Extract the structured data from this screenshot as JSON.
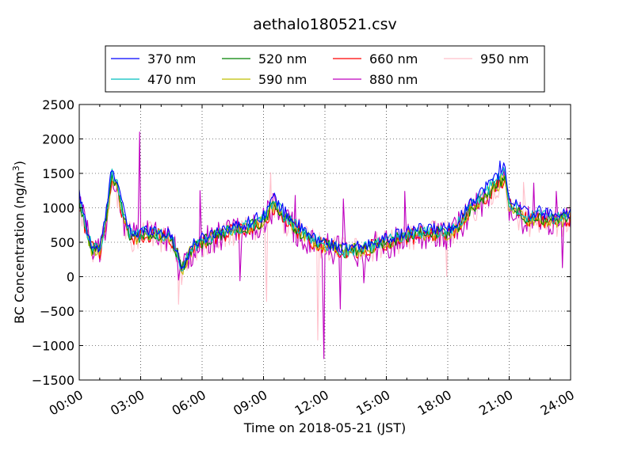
{
  "chart_data": {
    "type": "line",
    "title": "aethalo180521.csv",
    "xlabel": "Time on 2018-05-21 (JST)",
    "ylabel": "BC Concentration (ng/m",
    "ylabel_sup": "3",
    "ylabel_end": ")",
    "xlim": [
      0,
      24
    ],
    "ylim": [
      -1500,
      2500
    ],
    "x_ticks": [
      0,
      3,
      6,
      9,
      12,
      15,
      18,
      21,
      24
    ],
    "x_tick_labels": [
      "00:00",
      "03:00",
      "06:00",
      "09:00",
      "12:00",
      "15:00",
      "18:00",
      "21:00",
      "24:00"
    ],
    "y_ticks": [
      -1500,
      -1000,
      -500,
      0,
      500,
      1000,
      1500,
      2000,
      2500
    ],
    "y_tick_labels": [
      "−1500",
      "−1000",
      "−500",
      "0",
      "500",
      "1000",
      "1500",
      "2000",
      "2500"
    ],
    "grid": true,
    "legend_position": "top",
    "series": [
      {
        "name": "370 nm",
        "color": "#0000ff"
      },
      {
        "name": "470 nm",
        "color": "#00bfbf"
      },
      {
        "name": "520 nm",
        "color": "#008000"
      },
      {
        "name": "590 nm",
        "color": "#bfbf00"
      },
      {
        "name": "660 nm",
        "color": "#ff0000"
      },
      {
        "name": "880 nm",
        "color": "#bf00bf"
      },
      {
        "name": "950 nm",
        "color": "#ffc0cb"
      }
    ],
    "baseline_profile": {
      "hours": [
        0,
        0.3,
        0.6,
        1.0,
        1.3,
        1.6,
        1.9,
        2.2,
        2.5,
        2.8,
        3.0,
        3.5,
        4.0,
        4.5,
        4.8,
        5.0,
        5.5,
        6.0,
        7.0,
        8.0,
        9.0,
        9.5,
        10.0,
        10.5,
        11.0,
        11.5,
        12.0,
        13.0,
        14.0,
        15.0,
        16.0,
        17.0,
        18.0,
        18.5,
        19.0,
        19.5,
        20.0,
        20.5,
        20.8,
        21.0,
        21.5,
        22.0,
        22.5,
        23.0,
        23.5,
        24.0
      ],
      "values": [
        1200,
        800,
        450,
        400,
        900,
        1600,
        1350,
        900,
        650,
        620,
        650,
        700,
        650,
        600,
        350,
        100,
        450,
        550,
        700,
        750,
        900,
        1150,
        950,
        800,
        650,
        550,
        500,
        400,
        450,
        550,
        650,
        700,
        700,
        800,
        1050,
        1200,
        1350,
        1500,
        1600,
        1150,
        1000,
        900,
        950,
        900,
        900,
        950
      ]
    },
    "series_scale": [
      1.0,
      0.9,
      0.82,
      0.8,
      0.78,
      0.76,
      0.74
    ],
    "series_noise": [
      90,
      95,
      100,
      105,
      120,
      230,
      210
    ],
    "spikes": [
      {
        "series": "880 nm",
        "x": 2.95,
        "y": 2100
      },
      {
        "series": "880 nm",
        "x": 11.95,
        "y": -1190
      },
      {
        "series": "880 nm",
        "x": 12.75,
        "y": -470
      },
      {
        "series": "880 nm",
        "x": 10.55,
        "y": 1180
      },
      {
        "series": "880 nm",
        "x": 12.9,
        "y": 1130
      },
      {
        "series": "950 nm",
        "x": 11.65,
        "y": -920
      },
      {
        "series": "950 nm",
        "x": 4.85,
        "y": -400
      },
      {
        "series": "950 nm",
        "x": 9.15,
        "y": -360
      },
      {
        "series": "950 nm",
        "x": 9.35,
        "y": 1510
      },
      {
        "series": "880 nm",
        "x": 5.9,
        "y": 1250
      },
      {
        "series": "880 nm",
        "x": 7.85,
        "y": -60
      },
      {
        "series": "880 nm",
        "x": 15.9,
        "y": 1240
      },
      {
        "series": "880 nm",
        "x": 23.3,
        "y": 1240
      },
      {
        "series": "880 nm",
        "x": 22.2,
        "y": 1360
      },
      {
        "series": "950 nm",
        "x": 21.7,
        "y": 1370
      },
      {
        "series": "880 nm",
        "x": 23.6,
        "y": 130
      },
      {
        "series": "950 nm",
        "x": 17.95,
        "y": 0
      },
      {
        "series": "880 nm",
        "x": 4.85,
        "y": -50
      },
      {
        "series": "370 nm",
        "x": 20.55,
        "y": 1680
      },
      {
        "series": "880 nm",
        "x": 13.9,
        "y": -90
      }
    ]
  }
}
